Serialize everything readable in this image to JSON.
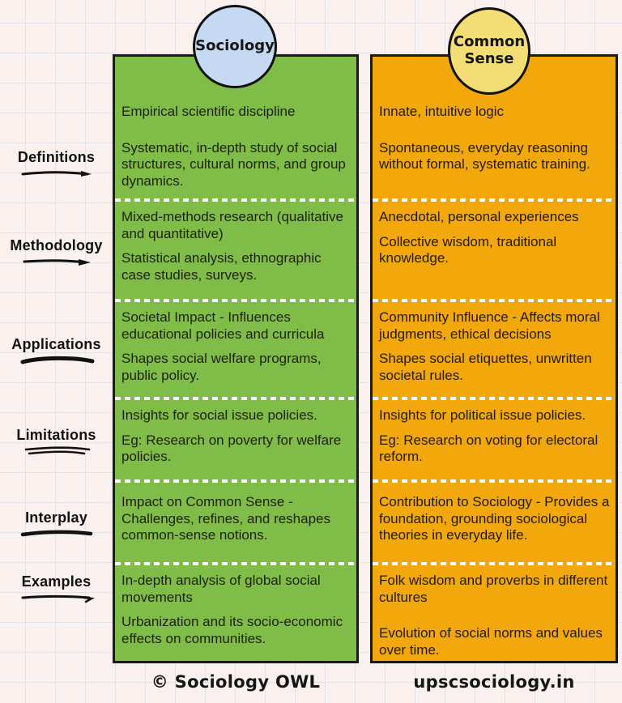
{
  "title": "Sociology vs Common Sense comparison",
  "colors": {
    "sociology_column": "#80BC48",
    "common_sense_column": "#F2A70B",
    "sociology_bubble": "#C5DAF2",
    "common_sense_bubble": "#F3DD75",
    "background": "#FAF1EE",
    "separator": "#FFFFFF",
    "outline": "#1B1B1B"
  },
  "columns": {
    "left_header": "Sociology",
    "right_header": "Common Sense"
  },
  "rows": [
    {
      "label": "Definitions",
      "sociology": [
        "Empirical scientific discipline",
        "Systematic, in-depth study of social structures, cultural norms, and group dynamics."
      ],
      "common_sense": [
        "Innate, intuitive logic",
        "Spontaneous, everyday reasoning without formal, systematic training."
      ]
    },
    {
      "label": "Methodology",
      "sociology": [
        "Mixed-methods research (qualitative and quantitative)",
        "Statistical analysis, ethnographic case studies, surveys."
      ],
      "common_sense": [
        "Anecdotal, personal experiences",
        "Collective wisdom, traditional knowledge."
      ]
    },
    {
      "label": "Applications",
      "sociology": [
        "Societal Impact - Influences educational policies and curricula",
        "Shapes social welfare programs, public policy."
      ],
      "common_sense": [
        "Community Influence - Affects moral judgments, ethical decisions",
        "Shapes social etiquettes, unwritten societal rules."
      ]
    },
    {
      "label": "Limitations",
      "sociology": [
        "Insights for social issue policies.",
        "Eg: Research on poverty for welfare policies."
      ],
      "common_sense": [
        "Insights for political issue policies.",
        "Eg: Research on voting for electoral reform."
      ]
    },
    {
      "label": "Interplay",
      "sociology": [
        "Impact on Common Sense - Challenges, refines, and reshapes common-sense notions."
      ],
      "common_sense": [
        "Contribution to Sociology - Provides a foundation, grounding sociological theories in everyday life."
      ]
    },
    {
      "label": "Examples",
      "sociology": [
        "In-depth analysis of global social movements",
        "Urbanization and its socio-economic effects on communities."
      ],
      "common_sense": [
        "Folk wisdom and proverbs in different cultures",
        "Evolution of social norms and values over time."
      ]
    }
  ],
  "footer": {
    "left": "© Sociology OWL",
    "right": "upscsociology.in"
  }
}
